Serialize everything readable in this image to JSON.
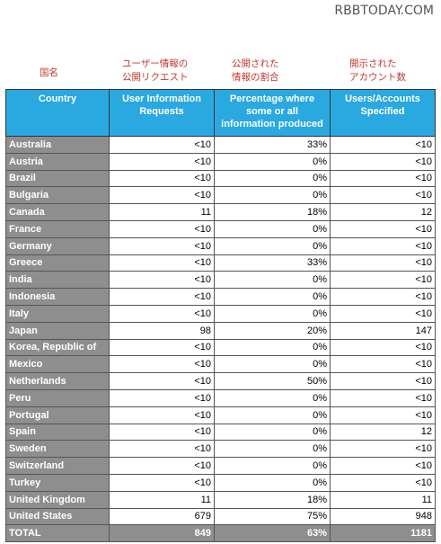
{
  "watermark": "RBBTODAY.COM",
  "japanese_headers": [
    "国名",
    "ユーザー情報の\n公開リクエスト",
    "公開された\n情報の割合",
    "開示された\nアカウント数"
  ],
  "columns": [
    "Country",
    "User Information Requests",
    "Percentage where some or all information produced",
    "Users/Accounts Specified"
  ],
  "rows": [
    [
      "Australia",
      "<10",
      "33%",
      "<10"
    ],
    [
      "Austria",
      "<10",
      "0%",
      "<10"
    ],
    [
      "Brazil",
      "<10",
      "0%",
      "<10"
    ],
    [
      "Bulgaria",
      "<10",
      "0%",
      "<10"
    ],
    [
      "Canada",
      "11",
      "18%",
      "12"
    ],
    [
      "France",
      "<10",
      "0%",
      "<10"
    ],
    [
      "Germany",
      "<10",
      "0%",
      "<10"
    ],
    [
      "Greece",
      "<10",
      "33%",
      "<10"
    ],
    [
      "India",
      "<10",
      "0%",
      "<10"
    ],
    [
      "Indonesia",
      "<10",
      "0%",
      "<10"
    ],
    [
      "Italy",
      "<10",
      "0%",
      "<10"
    ],
    [
      "Japan",
      "98",
      "20%",
      "147"
    ],
    [
      "Korea, Republic of",
      "<10",
      "0%",
      "<10"
    ],
    [
      "Mexico",
      "<10",
      "0%",
      "<10"
    ],
    [
      "Netherlands",
      "<10",
      "50%",
      "<10"
    ],
    [
      "Peru",
      "<10",
      "0%",
      "<10"
    ],
    [
      "Portugal",
      "<10",
      "0%",
      "<10"
    ],
    [
      "Spain",
      "<10",
      "0%",
      "12"
    ],
    [
      "Sweden",
      "<10",
      "0%",
      "<10"
    ],
    [
      "Switzerland",
      "<10",
      "0%",
      "<10"
    ],
    [
      "Turkey",
      "<10",
      "0%",
      "<10"
    ],
    [
      "United Kingdom",
      "11",
      "18%",
      "11"
    ],
    [
      "United States",
      "679",
      "75%",
      "948"
    ]
  ],
  "total": [
    "TOTAL",
    "849",
    "63%",
    "1181"
  ],
  "colors": {
    "header_bg": "#2aa8e0",
    "country_bg": "#8e8e8e",
    "japanese_text": "#c0392b"
  }
}
